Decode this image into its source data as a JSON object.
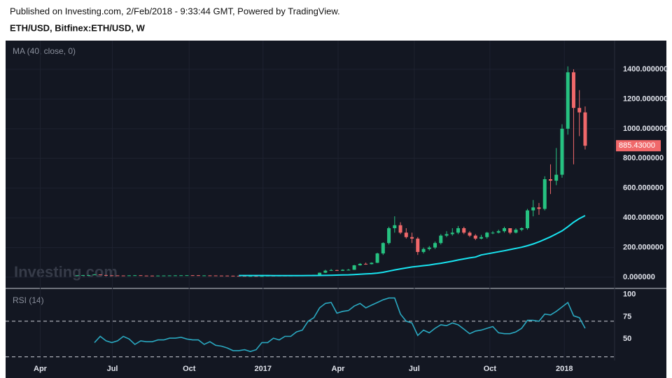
{
  "header": {
    "published": "Published on Investing.com, 2/Feb/2018 - 9:33:44 GMT, Powered by TradingView.",
    "symbol": "ETH/USD, Bitfinex:ETH/USD, W"
  },
  "watermark": "Investing.com",
  "x_axis": {
    "xlim": [
      -12.4,
      93.1
    ],
    "xticks": [
      {
        "value": -6.4,
        "label": "Apr"
      },
      {
        "value": 6.1,
        "label": "Jul"
      },
      {
        "value": 19.4,
        "label": "Oct"
      },
      {
        "value": 32.2,
        "label": "2017"
      },
      {
        "value": 45.2,
        "label": "Apr"
      },
      {
        "value": 58.4,
        "label": "Jul"
      },
      {
        "value": 71.5,
        "label": "Oct"
      },
      {
        "value": 84.4,
        "label": "2018"
      }
    ]
  },
  "chart_data": [
    {
      "type": "candlestick",
      "title": "MA (40, close, 0)",
      "grid": true,
      "up_color": "#26c281",
      "down_color": "#f0686a",
      "categories": [
        null,
        null,
        null,
        null,
        null,
        null,
        null,
        null,
        null,
        null,
        null,
        null,
        null,
        null,
        null,
        null,
        null,
        null,
        null,
        null,
        null,
        null,
        null,
        null,
        null,
        null,
        null,
        null,
        null,
        null,
        null,
        null,
        null,
        null,
        null,
        null,
        null,
        null,
        null,
        null,
        null,
        null,
        null,
        null,
        null,
        null,
        null,
        null,
        null,
        null,
        null,
        null,
        null,
        null,
        null,
        null,
        null,
        null,
        null,
        null,
        null,
        null,
        null,
        null,
        null,
        null,
        null,
        null,
        null,
        null,
        null,
        null,
        null,
        null,
        null,
        null,
        null,
        null,
        null,
        null,
        null,
        null,
        null,
        null,
        null,
        null,
        null,
        null,
        null
      ],
      "open": [
        12.5,
        13.2,
        14.0,
        14.2,
        18.5,
        14.5,
        12.5,
        12.1,
        11.5,
        10.9,
        12.3,
        13.0,
        11.0,
        10.8,
        10.5,
        11.0,
        11.4,
        11.9,
        12.3,
        12.8,
        13.2,
        13.1,
        12.0,
        12.0,
        11.7,
        11.0,
        10.8,
        10.0,
        9.6,
        8.7,
        8.0,
        8.2,
        7.7,
        8.0,
        10.0,
        9.9,
        10.6,
        10.5,
        10.7,
        11.4,
        12.8,
        13.1,
        16,
        30,
        44,
        48,
        43,
        50,
        50,
        80,
        90,
        88,
        97,
        160,
        230,
        330,
        350,
        300,
        270,
        260,
        170,
        190,
        200,
        230,
        280,
        290,
        300,
        330,
        300,
        280,
        260,
        270,
        300,
        300,
        310,
        330,
        300,
        320,
        330,
        450,
        470,
        460,
        660,
        650,
        690,
        1000,
        1380,
        1140,
        1110
      ],
      "high": [
        13.8,
        14.8,
        15,
        21,
        19,
        15,
        13,
        12.5,
        11.8,
        12.8,
        14.5,
        13.2,
        11.5,
        11.2,
        11.6,
        12,
        12.4,
        12.8,
        13.4,
        13.8,
        13.8,
        13.3,
        12.6,
        12.4,
        11.9,
        11.3,
        11,
        10.3,
        9.8,
        9,
        8.5,
        8.4,
        8.3,
        10.3,
        10.5,
        10.9,
        11,
        11,
        11.5,
        12.9,
        13.5,
        16.5,
        31,
        50,
        55,
        50,
        53,
        56,
        83,
        95,
        98,
        100,
        165,
        235,
        340,
        410,
        370,
        330,
        300,
        270,
        200,
        210,
        240,
        290,
        310,
        330,
        345,
        340,
        310,
        290,
        285,
        305,
        310,
        320,
        340,
        330,
        330,
        335,
        460,
        520,
        500,
        680,
        760,
        870,
        1030,
        1420,
        1400,
        1260,
        1150
      ],
      "low": [
        12,
        12.8,
        13.5,
        14,
        14,
        12,
        11.5,
        11,
        10.5,
        10.8,
        12,
        10.8,
        10.5,
        10.2,
        10.4,
        10.9,
        11.2,
        11.7,
        12.1,
        12.6,
        12.7,
        11.8,
        11.7,
        11.4,
        10.8,
        10.5,
        9.8,
        9.4,
        8.5,
        7.8,
        7.9,
        7.5,
        7.6,
        7.9,
        9.7,
        9.8,
        10.3,
        10.3,
        10.6,
        11.3,
        12.5,
        13,
        15.5,
        28,
        42,
        42,
        42,
        48,
        49,
        78,
        84,
        86,
        95,
        150,
        220,
        300,
        290,
        260,
        230,
        150,
        160,
        180,
        190,
        220,
        270,
        280,
        290,
        290,
        270,
        250,
        255,
        260,
        290,
        295,
        300,
        290,
        295,
        310,
        320,
        410,
        420,
        450,
        560,
        620,
        670,
        960,
        760,
        950,
        860
      ],
      "close": [
        13.2,
        14.0,
        14.2,
        18.5,
        14.5,
        12.5,
        12.1,
        11.5,
        10.9,
        12.3,
        13.0,
        11.0,
        10.8,
        10.5,
        11.0,
        11.4,
        11.9,
        12.3,
        12.8,
        13.2,
        13.1,
        12.0,
        12.0,
        11.7,
        11.0,
        10.8,
        10.0,
        9.6,
        8.7,
        8.0,
        8.2,
        7.7,
        8.0,
        10.0,
        9.9,
        10.6,
        10.5,
        10.7,
        11.4,
        12.8,
        13.1,
        16,
        30,
        44,
        48,
        43,
        50,
        50,
        80,
        90,
        88,
        97,
        160,
        230,
        330,
        350,
        300,
        270,
        260,
        170,
        190,
        200,
        230,
        280,
        290,
        300,
        330,
        300,
        280,
        260,
        270,
        300,
        300,
        310,
        330,
        300,
        320,
        330,
        450,
        470,
        460,
        660,
        650,
        690,
        1000,
        1380,
        1140,
        1110,
        885.43
      ],
      "last_label": "885.43000",
      "ma": {
        "color": "#18e4f0",
        "values": [
          null,
          null,
          null,
          null,
          null,
          null,
          null,
          null,
          null,
          null,
          null,
          null,
          null,
          null,
          null,
          null,
          null,
          null,
          null,
          null,
          null,
          null,
          null,
          null,
          null,
          null,
          null,
          null,
          11.5,
          11.4,
          11.3,
          11.2,
          11.1,
          11.1,
          11.0,
          11.0,
          11.0,
          11.0,
          11.0,
          11.0,
          11.1,
          11.2,
          11.6,
          12.4,
          13.3,
          14.2,
          15.2,
          16.2,
          18.0,
          20.0,
          22,
          24.2,
          28,
          33,
          41,
          49,
          56,
          62,
          69,
          73,
          78,
          82,
          88,
          94,
          101,
          108,
          116,
          123,
          130,
          136,
          150,
          157,
          164,
          171,
          178,
          186,
          194,
          202,
          212,
          224,
          238,
          255,
          272,
          292,
          312,
          340,
          370,
          395,
          415
        ]
      },
      "ylim": [
        -66,
        1584
      ],
      "yticks": [
        {
          "value": 0,
          "label": "0.000000"
        },
        {
          "value": 200,
          "label": "200.000000"
        },
        {
          "value": 400,
          "label": "400.000000"
        },
        {
          "value": 600,
          "label": "600.000000"
        },
        {
          "value": 800,
          "label": "800.000000"
        },
        {
          "value": 1000,
          "label": "1000.000000"
        },
        {
          "value": 1200,
          "label": "1200.000000"
        },
        {
          "value": 1400,
          "label": "1400.000000"
        }
      ]
    },
    {
      "type": "line",
      "title": "RSI (14)",
      "grid": true,
      "color": "#2aa8c0",
      "categories": [
        null,
        null,
        null,
        null,
        null,
        null,
        null,
        null,
        null,
        null,
        null,
        null,
        null,
        null,
        null,
        null,
        null,
        null,
        null,
        null,
        null,
        null,
        null,
        null,
        null,
        null,
        null,
        null,
        null,
        null,
        null,
        null,
        null,
        null,
        null,
        null,
        null,
        null,
        null,
        null,
        null,
        null,
        null,
        null,
        null,
        null,
        null,
        null,
        null,
        null,
        null,
        null,
        null,
        null,
        null,
        null,
        null,
        null,
        null,
        null,
        null,
        null,
        null,
        null,
        null,
        null,
        null,
        null,
        null,
        null,
        null,
        null,
        null,
        null,
        null,
        null,
        null,
        null,
        null,
        null,
        null,
        null,
        null,
        null,
        null,
        null,
        null,
        null,
        null
      ],
      "values": [
        null,
        null,
        null,
        46,
        53,
        48,
        46,
        48,
        53,
        50,
        44,
        48,
        47,
        47,
        49,
        49,
        51,
        51,
        52,
        50,
        49,
        49,
        44,
        47,
        43,
        42,
        40,
        37,
        37,
        38,
        36,
        38,
        46,
        46,
        51,
        49,
        53,
        53,
        58,
        60,
        70,
        74,
        85,
        90,
        91,
        79,
        81,
        82,
        87,
        90,
        85,
        88,
        91,
        94,
        96,
        96,
        78,
        70,
        68,
        54,
        60,
        57,
        62,
        66,
        65,
        68,
        66,
        61,
        56,
        59,
        60,
        62,
        64,
        57,
        56,
        56,
        58,
        62,
        71,
        71,
        70,
        78,
        77,
        81,
        86,
        91,
        76,
        74,
        62
      ],
      "levels": [
        30,
        70
      ],
      "ylim": [
        22,
        106
      ],
      "yticks": [
        50,
        75,
        100
      ]
    }
  ]
}
